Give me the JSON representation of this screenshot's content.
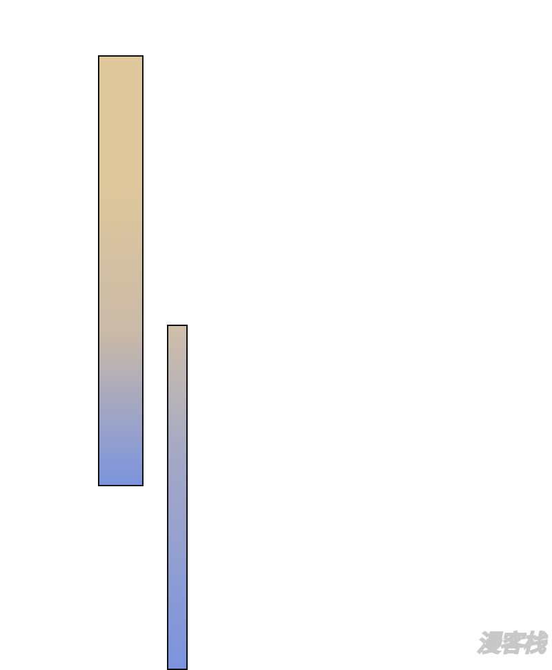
{
  "colors": {
    "bar_top": "#dfc89b",
    "bar2_top": "#cfbfa8",
    "bar_bottom": "#7b94de",
    "outline": "#111111"
  },
  "watermark": {
    "text": "漫客栈"
  }
}
